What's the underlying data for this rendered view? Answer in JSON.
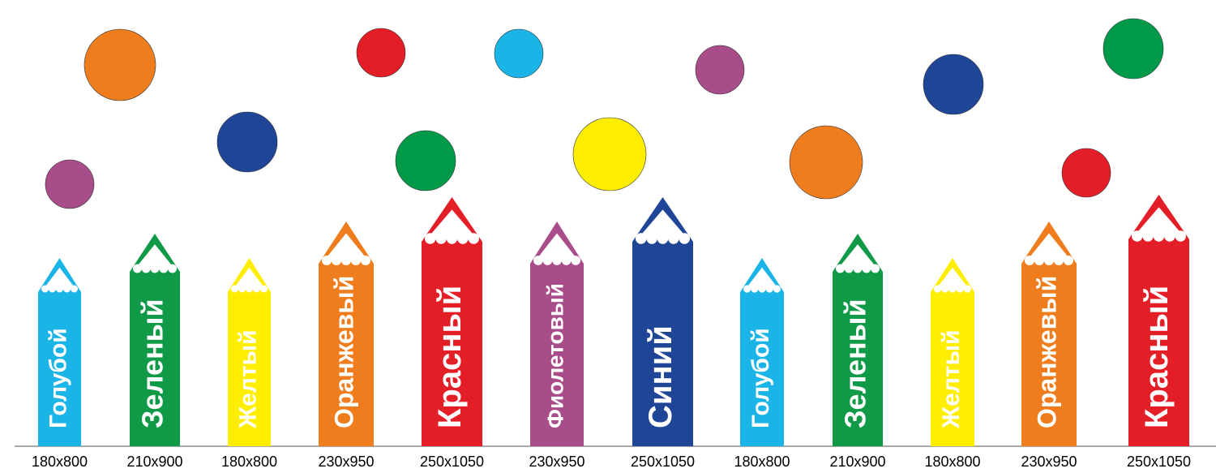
{
  "pencils": [
    {
      "label": "Голубой",
      "size": "180x800"
    },
    {
      "label": "Зеленый",
      "size": "210x900"
    },
    {
      "label": "Желтый",
      "size": "180x800"
    },
    {
      "label": "Оранжевый",
      "size": "230x950"
    },
    {
      "label": "Красный",
      "size": "250x1050"
    },
    {
      "label": "Фиолетовый",
      "size": "230x950"
    },
    {
      "label": "Синий",
      "size": "250x1050"
    },
    {
      "label": "Голубой",
      "size": "180x800"
    },
    {
      "label": "Зеленый",
      "size": "210x900"
    },
    {
      "label": "Желтый",
      "size": "180x800"
    },
    {
      "label": "Оранжевый",
      "size": "230x950"
    },
    {
      "label": "Красный",
      "size": "250x1050"
    }
  ]
}
